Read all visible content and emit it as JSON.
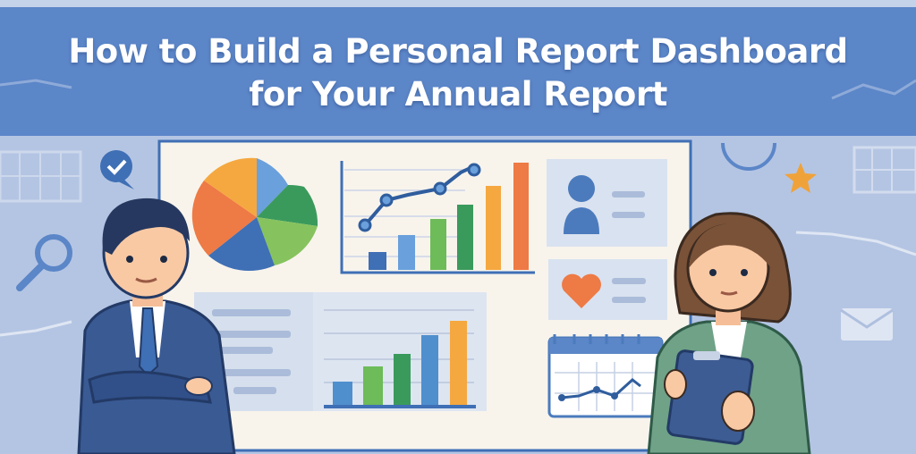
{
  "banner": {
    "title_line1": "How to Build a Personal Report Dashboard",
    "title_line2": "for Your Annual Report"
  },
  "illustration": {
    "icons": [
      "pie-chart-icon",
      "bar-chart-icon",
      "line-chart-icon",
      "user-profile-icon",
      "heart-icon",
      "calendar-icon",
      "magnifier-icon",
      "checkmark-chat-icon",
      "star-icon",
      "envelope-icon"
    ],
    "people": [
      "businessman-arms-crossed",
      "businesswoman-holding-tablet"
    ]
  },
  "colors": {
    "banner": "#5b86c8",
    "background": "#aebfdf",
    "board": "#f8f4ec",
    "blue": "#3f6fb5",
    "lightblue": "#6aa0dc",
    "green": "#3a9a5c",
    "lightgreen": "#86c35e",
    "orange": "#f0a23a",
    "red_orange": "#ee7a45"
  }
}
